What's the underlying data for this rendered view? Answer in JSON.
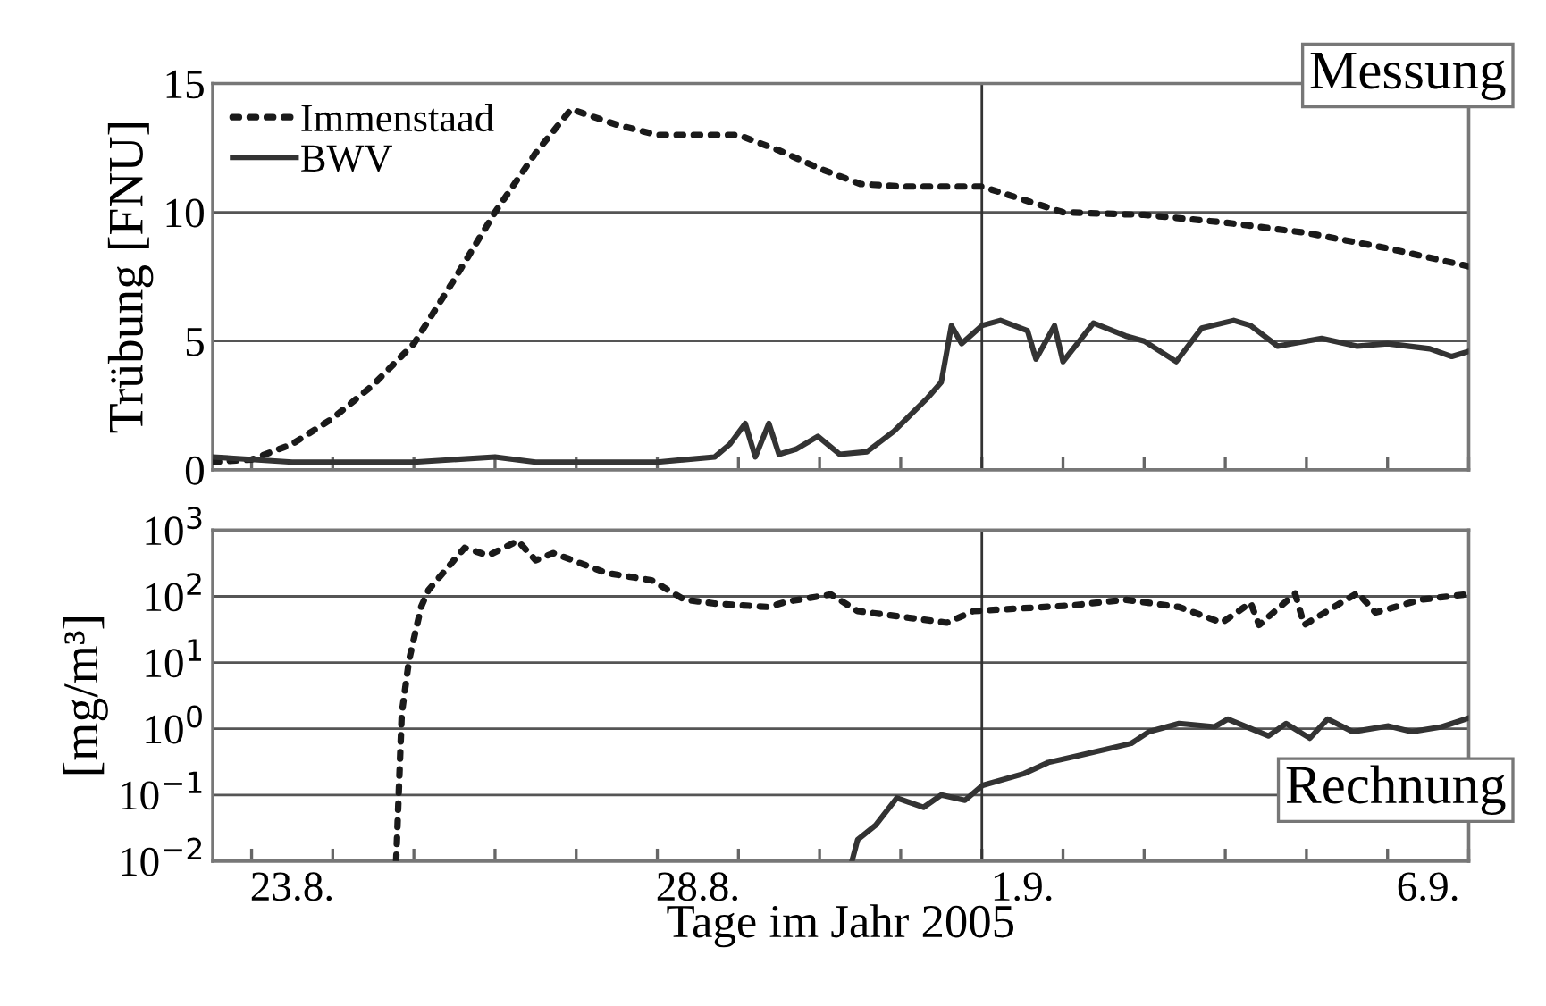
{
  "chart_data": [
    {
      "type": "line",
      "ylabel": "Trübung [FNU]",
      "annotations": [
        "Messung"
      ],
      "legend": "top left",
      "grid": "y",
      "tick_labels": "y",
      "marker": "none",
      "xlim": [
        "2005-08-22T12:30",
        "2005-09-07T00:00"
      ],
      "xticks": [
        {
          "value": "2005-08-23T00:00",
          "label": null
        },
        {
          "value": "2005-08-24T00:00",
          "label": null
        },
        {
          "value": "2005-08-25T00:00",
          "label": null
        },
        {
          "value": "2005-08-26T00:00",
          "label": null
        },
        {
          "value": "2005-08-27T00:00",
          "label": null
        },
        {
          "value": "2005-08-28T00:00",
          "label": null
        },
        {
          "value": "2005-08-29T00:00",
          "label": null
        },
        {
          "value": "2005-08-30T00:00",
          "label": null
        },
        {
          "value": "2005-08-31T00:00",
          "label": null
        },
        {
          "value": "2005-09-01T00:00",
          "label": null
        },
        {
          "value": "2005-09-02T00:00",
          "label": null
        },
        {
          "value": "2005-09-03T00:00",
          "label": null
        },
        {
          "value": "2005-09-04T00:00",
          "label": null
        },
        {
          "value": "2005-09-05T00:00",
          "label": null
        },
        {
          "value": "2005-09-06T00:00",
          "label": null
        },
        {
          "value": "2005-09-07T00:00",
          "label": null
        }
      ],
      "ylim": [
        0,
        15
      ],
      "yticks": [
        0,
        5,
        10,
        15
      ],
      "ref_lines": [
        {
          "axis": "x",
          "value": "2005-09-01T00:00",
          "label": null,
          "color": "#333333"
        }
      ],
      "series": [
        {
          "name": "Immenstaad",
          "color": "#1a1a1a",
          "line_style": "dotted",
          "x": [
            "2005-08-22T12:30",
            "2005-08-23T00:00",
            "2005-08-23T12:00",
            "2005-08-24T00:00",
            "2005-08-24T12:00",
            "2005-08-25T00:00",
            "2005-08-25T12:00",
            "2005-08-26T00:00",
            "2005-08-26T12:00",
            "2005-08-26T22:30",
            "2005-08-27T12:00",
            "2005-08-28T00:00",
            "2005-08-29T00:00",
            "2005-08-29T12:00",
            "2005-08-30T00:00",
            "2005-08-30T12:00",
            "2005-08-31T00:00",
            "2005-08-31T12:00",
            "2005-09-01T00:00",
            "2005-09-01T12:00",
            "2005-09-02T00:00",
            "2005-09-03T00:00",
            "2005-09-04T00:00",
            "2005-09-05T00:00",
            "2005-09-06T00:00",
            "2005-09-07T00:00"
          ],
          "values": [
            0.3,
            0.4,
            1.0,
            2.0,
            3.3,
            4.9,
            7.4,
            10.0,
            12.3,
            14.0,
            13.4,
            13.0,
            13.0,
            12.4,
            11.7,
            11.1,
            11.0,
            11.0,
            11.0,
            10.5,
            10.0,
            9.9,
            9.6,
            9.2,
            8.6,
            7.9
          ]
        },
        {
          "name": "BWV",
          "color": "#333333",
          "line_style": "solid",
          "x": [
            "2005-08-22T12:30",
            "2005-08-23T12:00",
            "2005-08-25T00:00",
            "2005-08-26T00:00",
            "2005-08-26T12:00",
            "2005-08-28T00:00",
            "2005-08-28T17:00",
            "2005-08-28T21:30",
            "2005-08-29T02:00",
            "2005-08-29T05:00",
            "2005-08-29T09:00",
            "2005-08-29T12:00",
            "2005-08-29T17:00",
            "2005-08-29T23:30",
            "2005-08-30T06:00",
            "2005-08-30T14:00",
            "2005-08-30T22:00",
            "2005-08-31T08:00",
            "2005-08-31T12:00",
            "2005-08-31T15:00",
            "2005-08-31T18:00",
            "2005-09-01T00:00",
            "2005-09-01T05:30",
            "2005-09-01T13:30",
            "2005-09-01T16:00",
            "2005-09-01T21:30",
            "2005-09-02T00:00",
            "2005-09-02T09:00",
            "2005-09-02T18:30",
            "2005-09-03T00:00",
            "2005-09-03T09:30",
            "2005-09-03T17:00",
            "2005-09-04T02:30",
            "2005-09-04T07:30",
            "2005-09-04T15:30",
            "2005-09-05T04:30",
            "2005-09-05T15:00",
            "2005-09-06T00:00",
            "2005-09-06T12:30",
            "2005-09-06T19:00",
            "2005-09-07T00:00"
          ],
          "values": [
            0.5,
            0.3,
            0.3,
            0.5,
            0.3,
            0.3,
            0.5,
            1.0,
            1.8,
            0.5,
            1.8,
            0.6,
            0.8,
            1.3,
            0.6,
            0.7,
            1.5,
            2.8,
            3.4,
            5.6,
            4.9,
            5.6,
            5.8,
            5.4,
            4.3,
            5.6,
            4.2,
            5.7,
            5.2,
            5.0,
            4.2,
            5.5,
            5.8,
            5.6,
            4.8,
            5.1,
            4.8,
            4.9,
            4.7,
            4.4,
            4.6
          ]
        }
      ]
    },
    {
      "type": "line",
      "ylabel": "[mg/m³]",
      "xlabel": "Tage im Jahr 2005",
      "annotations": [
        "Rechnung"
      ],
      "log": "y",
      "grid": "y",
      "marker": "none",
      "xlim": [
        "2005-08-22T12:30",
        "2005-09-07T00:00"
      ],
      "xticks": [
        {
          "value": "2005-08-23T00:00",
          "label": null
        },
        {
          "value": "2005-08-23T12:00",
          "label": "23.8."
        },
        {
          "value": "2005-08-24T00:00",
          "label": null
        },
        {
          "value": "2005-08-25T00:00",
          "label": null
        },
        {
          "value": "2005-08-26T00:00",
          "label": null
        },
        {
          "value": "2005-08-27T00:00",
          "label": null
        },
        {
          "value": "2005-08-28T00:00",
          "label": null
        },
        {
          "value": "2005-08-28T12:00",
          "label": "28.8."
        },
        {
          "value": "2005-08-29T00:00",
          "label": null
        },
        {
          "value": "2005-08-30T00:00",
          "label": null
        },
        {
          "value": "2005-08-31T00:00",
          "label": null
        },
        {
          "value": "2005-09-01T00:00",
          "label": null
        },
        {
          "value": "2005-09-01T12:00",
          "label": "1.9."
        },
        {
          "value": "2005-09-02T00:00",
          "label": null
        },
        {
          "value": "2005-09-03T00:00",
          "label": null
        },
        {
          "value": "2005-09-04T00:00",
          "label": null
        },
        {
          "value": "2005-09-05T00:00",
          "label": null
        },
        {
          "value": "2005-09-06T00:00",
          "label": null
        },
        {
          "value": "2005-09-06T12:00",
          "label": "6.9."
        },
        {
          "value": "2005-09-07T00:00",
          "label": null
        }
      ],
      "ylim": [
        0.01,
        1000
      ],
      "yticks": [
        {
          "value": 0.01,
          "label": "10$^{−2}$"
        },
        {
          "value": 0.1,
          "label": "10$^{−1}$"
        },
        {
          "value": 1,
          "label": "10$^{0}$"
        },
        {
          "value": 10,
          "label": "10$^{1}$"
        },
        {
          "value": 100,
          "label": "10$^{2}$"
        },
        {
          "value": 1000,
          "label": "10$^{3}$"
        }
      ],
      "ref_lines": [
        {
          "axis": "x",
          "value": "2005-09-01T00:00",
          "label": null,
          "color": "#333333"
        }
      ],
      "series": [
        {
          "color": "#1a1a1a",
          "line_style": "dotted",
          "x": [
            "2005-08-24T18:45",
            "2005-08-24T20:25",
            "2005-08-24T22:35",
            "2005-08-25T02:10",
            "2005-08-25T04:20",
            "2005-08-25T15:00",
            "2005-08-25T22:00",
            "2005-08-26T06:45",
            "2005-08-26T12:00",
            "2005-08-26T17:15",
            "2005-08-27T09:00",
            "2005-08-27T22:20",
            "2005-08-28T08:00",
            "2005-08-28T16:50",
            "2005-08-29T09:00",
            "2005-08-29T14:10",
            "2005-08-30T03:20",
            "2005-08-30T11:15",
            "2005-08-31T13:40",
            "2005-08-31T21:35",
            "2005-09-02T02:40",
            "2005-09-02T18:30",
            "2005-09-03T10:20",
            "2005-09-03T23:00",
            "2005-09-04T07:30",
            "2005-09-04T10:00",
            "2005-09-04T20:40",
            "2005-09-04T23:20",
            "2005-09-05T15:10",
            "2005-09-05T20:25",
            "2005-09-06T09:50",
            "2005-09-06T23:00"
          ],
          "values": [
            0.01,
            1.7,
            11,
            70,
            125,
            540,
            415,
            690,
            350,
            450,
            225,
            175,
            89,
            78,
            69,
            83,
            107,
            60,
            40,
            60,
            73,
            89,
            69,
            40,
            80,
            37,
            110,
            37,
            113,
            57,
            89,
            107
          ]
        },
        {
          "color": "#333333",
          "line_style": "solid",
          "x": [
            "2005-08-30T09:35",
            "2005-08-30T11:15",
            "2005-08-30T16:35",
            "2005-08-30T22:50",
            "2005-08-31T06:45",
            "2005-08-31T12:00",
            "2005-08-31T19:00",
            "2005-09-01T00:15",
            "2005-09-01T12:30",
            "2005-09-01T19:40",
            "2005-09-02T04:20",
            "2005-09-02T20:10",
            "2005-09-03T01:25",
            "2005-09-03T10:20",
            "2005-09-03T20:50",
            "2005-09-04T00:45",
            "2005-09-04T12:45",
            "2005-09-04T18:00",
            "2005-09-05T01:00",
            "2005-09-05T06:15",
            "2005-09-05T13:40",
            "2005-09-06T00:15",
            "2005-09-06T07:10",
            "2005-09-06T16:05",
            "2005-09-07T00:00"
          ],
          "values": [
            0.01,
            0.021,
            0.035,
            0.09,
            0.065,
            0.1,
            0.083,
            0.14,
            0.21,
            0.31,
            0.39,
            0.6,
            0.9,
            1.2,
            1.07,
            1.4,
            0.78,
            1.2,
            0.72,
            1.4,
            0.9,
            1.1,
            0.9,
            1.07,
            1.45
          ]
        }
      ]
    }
  ]
}
